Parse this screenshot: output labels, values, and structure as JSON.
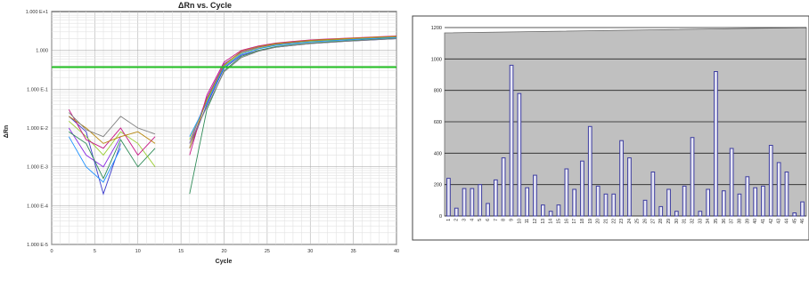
{
  "chart_data": [
    {
      "type": "line",
      "title": "ΔRn vs. Cycle",
      "xlabel": "Cycle",
      "ylabel": "ΔRn",
      "xlim": [
        0,
        40
      ],
      "ylim": [
        1e-05,
        10
      ],
      "y_scale": "log",
      "grid": true,
      "x_ticks": [
        "0",
        "5",
        "10",
        "15",
        "20",
        "25",
        "30",
        "35",
        "40"
      ],
      "y_ticks": [
        "1.000 E-5",
        "1.000 E-4",
        "1.000 E-3",
        "1.000 E-2",
        "1.000 E-1",
        "1.000",
        "1.000 E+1"
      ],
      "threshold": 0.37,
      "threshold_color": "#22c022",
      "x": [
        0,
        2,
        4,
        6,
        8,
        10,
        12,
        14,
        16,
        18,
        20,
        22,
        24,
        26,
        28,
        30,
        32,
        34,
        36,
        38,
        40
      ],
      "series": [
        {
          "color": "#3c3ccc",
          "values": [
            null,
            0.02,
            0.008,
            0.0002,
            0.004,
            null,
            null,
            null,
            0.003,
            0.04,
            0.35,
            0.75,
            1.0,
            1.2,
            1.35,
            1.5,
            1.6,
            1.7,
            1.8,
            1.9,
            2.0
          ]
        },
        {
          "color": "#8a2be2",
          "values": [
            null,
            0.01,
            0.002,
            0.001,
            0.006,
            null,
            null,
            null,
            0.004,
            0.06,
            0.45,
            0.9,
            1.2,
            1.45,
            1.6,
            1.75,
            1.85,
            1.95,
            2.05,
            2.15,
            2.25
          ]
        },
        {
          "color": "#2e8b57",
          "values": [
            null,
            0.008,
            0.004,
            0.0005,
            0.005,
            0.001,
            0.003,
            null,
            0.0002,
            0.03,
            0.3,
            0.7,
            1.0,
            1.25,
            1.4,
            1.55,
            1.65,
            1.75,
            1.85,
            1.95,
            2.05
          ]
        },
        {
          "color": "#9acd32",
          "values": [
            null,
            0.015,
            0.006,
            0.002,
            0.008,
            0.004,
            0.001,
            null,
            0.005,
            0.05,
            0.4,
            0.85,
            1.15,
            1.4,
            1.55,
            1.7,
            1.8,
            1.9,
            2.0,
            2.1,
            2.2
          ]
        },
        {
          "color": "#c71585",
          "values": [
            null,
            0.03,
            0.005,
            0.003,
            0.01,
            0.002,
            0.006,
            null,
            0.002,
            0.07,
            0.5,
            1.0,
            1.3,
            1.55,
            1.7,
            1.85,
            1.95,
            2.05,
            2.15,
            2.25,
            2.35
          ]
        },
        {
          "color": "#1e90ff",
          "values": [
            null,
            0.006,
            0.001,
            0.0004,
            0.003,
            null,
            0.002,
            null,
            0.006,
            0.045,
            0.38,
            0.8,
            1.1,
            1.35,
            1.5,
            1.65,
            1.75,
            1.85,
            1.95,
            2.05,
            2.15
          ]
        },
        {
          "color": "#b8860b",
          "values": [
            null,
            0.02,
            0.01,
            0.004,
            0.006,
            0.008,
            0.004,
            null,
            0.003,
            0.055,
            0.42,
            0.95,
            1.25,
            1.5,
            1.65,
            1.8,
            1.9,
            2.0,
            2.1,
            2.2,
            2.3
          ]
        },
        {
          "color": "#808080",
          "values": [
            null,
            0.025,
            0.009,
            0.006,
            0.02,
            0.01,
            0.007,
            null,
            0.004,
            0.035,
            0.28,
            0.65,
            0.95,
            1.2,
            1.35,
            1.5,
            1.6,
            1.7,
            1.8,
            1.9,
            2.0
          ]
        }
      ]
    },
    {
      "type": "bar",
      "title": "",
      "xlabel": "",
      "ylabel": "",
      "ylim": [
        0,
        1200
      ],
      "y_ticks": [
        "0",
        "200",
        "400",
        "600",
        "800",
        "1000",
        "1200"
      ],
      "grid": true,
      "plot_background": "#c0c0c0",
      "bar_color": "#3c3ca0",
      "bar_fill": "#e8e8f4",
      "categories": [
        "1",
        "2",
        "3",
        "4",
        "5",
        "6",
        "7",
        "8",
        "9",
        "10",
        "11",
        "12",
        "13",
        "14",
        "15",
        "16",
        "17",
        "18",
        "19",
        "20",
        "21",
        "22",
        "23",
        "24",
        "25",
        "26",
        "27",
        "28",
        "29",
        "30",
        "31",
        "32",
        "33",
        "34",
        "35",
        "36",
        "37",
        "38",
        "39",
        "40",
        "41",
        "42",
        "43",
        "44",
        "45",
        "46"
      ],
      "values": [
        240,
        50,
        175,
        175,
        200,
        80,
        230,
        370,
        960,
        780,
        180,
        260,
        70,
        30,
        70,
        300,
        170,
        350,
        570,
        190,
        140,
        140,
        480,
        370,
        0,
        100,
        280,
        60,
        170,
        30,
        190,
        500,
        30,
        170,
        920,
        160,
        430,
        140,
        250,
        180,
        190,
        450,
        340,
        280,
        20,
        90
      ]
    }
  ]
}
